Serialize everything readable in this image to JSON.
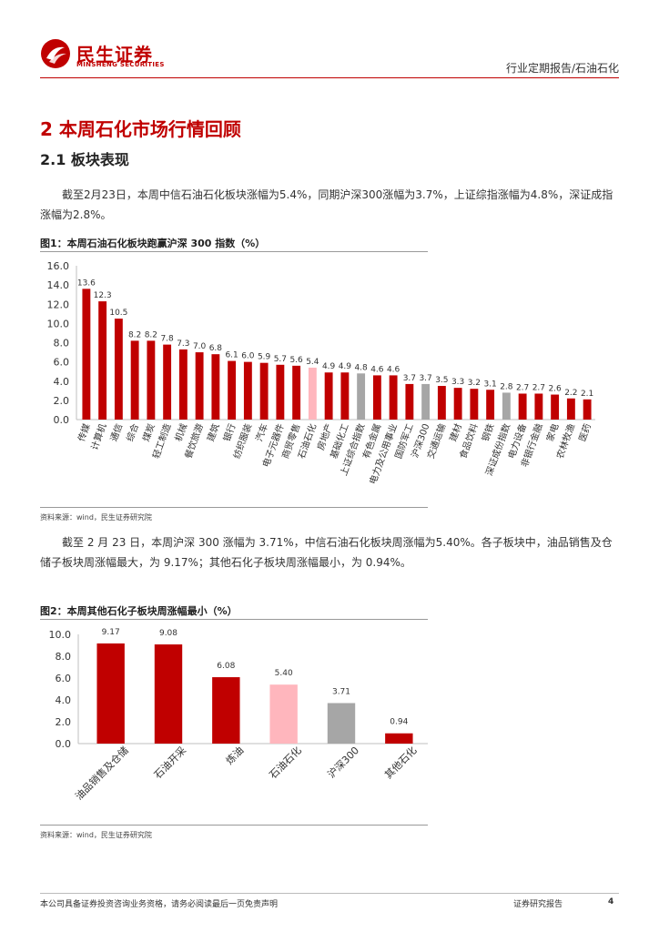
{
  "header": {
    "brand_cn": "民生证券",
    "brand_en": "MINSHENG SECURITIES",
    "report_type": "行业定期报告/石油石化"
  },
  "section": {
    "h1": "2 本周石化市场行情回顾",
    "h2": "2.1 板块表现"
  },
  "paragraphs": {
    "p1": "截至2月23日，本周中信石油石化板块涨幅为5.4%，同期沪深300涨幅为3.7%，上证综指涨幅为4.8%，深证成指涨幅为2.8%。",
    "p2": "截至 2 月 23 日，本周沪深 300 涨幅为 3.71%，中信石油石化板块周涨幅为5.40%。各子板块中，油品销售及仓储子板块周涨幅最大，为 9.17%；其他石化子板块周涨幅最小，为 0.94%。"
  },
  "figures": {
    "fig1_title": "图1：本周石油石化板块跑赢沪深 300 指数（%）",
    "fig1_source": "资料来源：wind，民生证券研究院",
    "fig2_title": "图2：本周其他石化子板块周涨幅最小（%）",
    "fig2_source": "资料来源：wind，民生证券研究院"
  },
  "colors": {
    "brand_red": "#c00000",
    "bar_red": "#c00000",
    "bar_pink": "#ffb6bd",
    "bar_gray": "#a6a6a6"
  },
  "chart_data": [
    {
      "type": "bar",
      "title": "图1：本周石油石化板块跑赢沪深 300 指数（%）",
      "categories": [
        "传媒",
        "计算机",
        "通信",
        "综合",
        "煤炭",
        "轻工制造",
        "机械",
        "餐饮旅游",
        "建筑",
        "银行",
        "纺织服装",
        "汽车",
        "电子元器件",
        "商贸零售",
        "石油石化",
        "房地产",
        "基础化工",
        "上证综合指数",
        "有色金属",
        "电力及公用事业",
        "国防军工",
        "沪深300",
        "交通运输",
        "建材",
        "食品饮料",
        "钢铁",
        "深证成份指数",
        "电力设备",
        "非银行金融",
        "家电",
        "农林牧渔",
        "医药"
      ],
      "values": [
        13.6,
        12.3,
        10.5,
        8.2,
        8.2,
        7.8,
        7.3,
        7.0,
        6.8,
        6.1,
        6.0,
        5.9,
        5.7,
        5.6,
        5.4,
        4.9,
        4.9,
        4.8,
        4.6,
        4.6,
        3.7,
        3.7,
        3.5,
        3.3,
        3.2,
        3.1,
        2.8,
        2.7,
        2.7,
        2.6,
        2.2,
        2.1
      ],
      "bar_colors": [
        "red",
        "red",
        "red",
        "red",
        "red",
        "red",
        "red",
        "red",
        "red",
        "red",
        "red",
        "red",
        "red",
        "red",
        "pink",
        "red",
        "red",
        "gray",
        "red",
        "red",
        "red",
        "gray",
        "red",
        "red",
        "red",
        "red",
        "gray",
        "red",
        "red",
        "red",
        "red",
        "red"
      ],
      "ylim": [
        0,
        16
      ],
      "yticks": [
        "0.0",
        "2.0",
        "4.0",
        "6.0",
        "8.0",
        "10.0",
        "12.0",
        "14.0",
        "16.0"
      ],
      "ytick_values": [
        0,
        2,
        4,
        6,
        8,
        10,
        12,
        14,
        16
      ],
      "grid": false,
      "xlabel": "",
      "ylabel": ""
    },
    {
      "type": "bar",
      "title": "图2：本周其他石化子板块周涨幅最小（%）",
      "categories": [
        "油品销售及仓储",
        "石油开采",
        "炼油",
        "石油石化",
        "沪深300",
        "其他石化"
      ],
      "values": [
        9.17,
        9.08,
        6.08,
        5.4,
        3.71,
        0.94
      ],
      "value_labels": [
        "9.17",
        "9.08",
        "6.08",
        "5.40",
        "3.71",
        "0.94"
      ],
      "bar_colors": [
        "red",
        "red",
        "red",
        "pink",
        "gray",
        "red"
      ],
      "ylim": [
        0,
        10
      ],
      "yticks": [
        "0.0",
        "2.0",
        "4.0",
        "6.0",
        "8.0",
        "10.0"
      ],
      "ytick_values": [
        0,
        2,
        4,
        6,
        8,
        10
      ],
      "grid": false,
      "xlabel": "",
      "ylabel": ""
    }
  ],
  "footer": {
    "disclaimer": "本公司具备证券投资咨询业务资格，请务必阅读最后一页免责声明",
    "doc_type": "证券研究报告",
    "page": "4"
  }
}
